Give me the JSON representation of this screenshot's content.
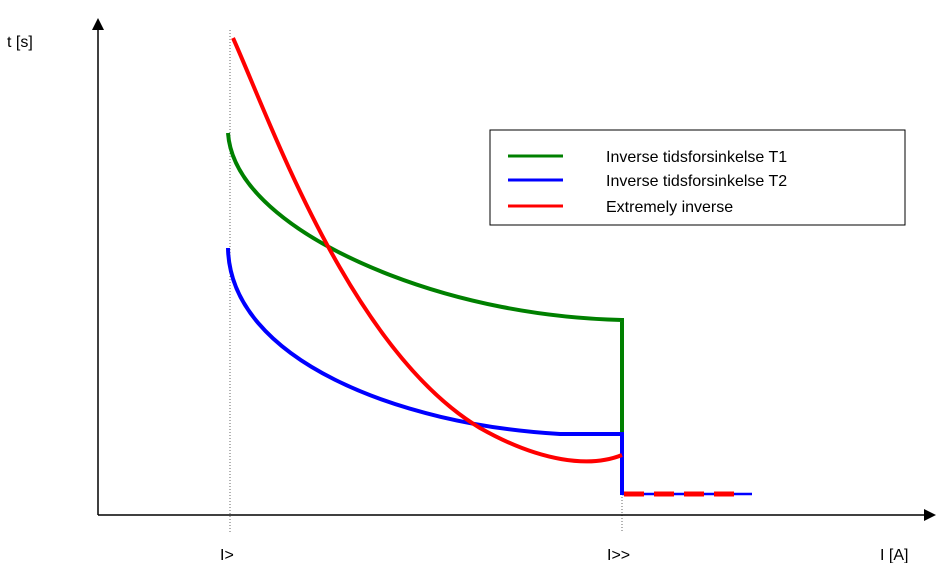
{
  "chart_data": {
    "type": "line",
    "ylabel": "t [s]",
    "xlabel": "I [A]",
    "ticks": [
      {
        "label": "I>",
        "at": "I>"
      },
      {
        "label": "I>>",
        "at": "I>>"
      }
    ],
    "legend_position": "top-right",
    "grid": false,
    "series": [
      {
        "name": "Inverse tidsforsinkelse T1",
        "color": "#008000"
      },
      {
        "name": "Inverse tidsforsinkelse T2",
        "color": "#0000ff"
      },
      {
        "name": "Extremely inverse",
        "color": "#ff0000"
      }
    ]
  }
}
